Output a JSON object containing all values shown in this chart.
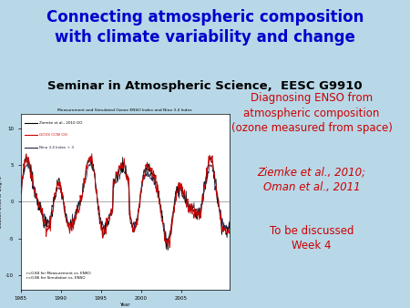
{
  "title_line1": "Connecting atmospheric composition",
  "title_line2": "with climate variability and change",
  "subtitle": "Seminar in Atmospheric Science,  EESC G9910",
  "title_color": "#0000CC",
  "subtitle_color": "#000000",
  "bg_color": "#B8D8E8",
  "right_text_normal": "Diagnosing ENSO from\natmospheric composition\n(ozone measured from space)",
  "right_text_italic1": "Ziemke et al., 2010;",
  "right_text_italic2": "Oman et al., 2011",
  "right_text_discussed": "To be discussed\nWeek 4",
  "right_text_color": "#CC0000",
  "chart_title": "Measurement and Simulated Ozone ENSO Index and Nino 3.4 Index",
  "legend1": "Ziemke et al., 2010 OO",
  "legend2": "GCOS CCW OO",
  "legend3": "Nino 3.4 Index + 3",
  "annot": "r=0.84 for Measurement vs. ENSO\nr=0.86 for Simulation vs. ENSO"
}
